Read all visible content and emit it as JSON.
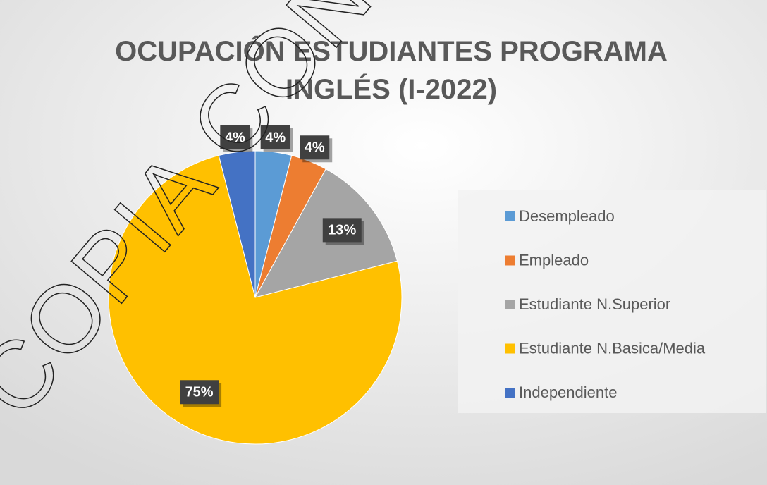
{
  "chart_data": {
    "type": "pie",
    "title": "OCUPACIÓN ESTUDIANTES PROGRAMA INGLÉS (I-2022)",
    "categories": [
      "Desempleado",
      "Empleado",
      "Estudiante N.Superior",
      "Estudiante N.Basica/Media",
      "Independiente"
    ],
    "values": [
      4,
      4,
      13,
      75,
      4
    ],
    "value_labels": [
      "4%",
      "4%",
      "13%",
      "75%",
      "4%"
    ],
    "colors": [
      "#5b9bd5",
      "#ed7d31",
      "#a5a5a5",
      "#ffc000",
      "#4472c4"
    ],
    "legend": "right",
    "watermark": "COPIA CONTRO"
  }
}
